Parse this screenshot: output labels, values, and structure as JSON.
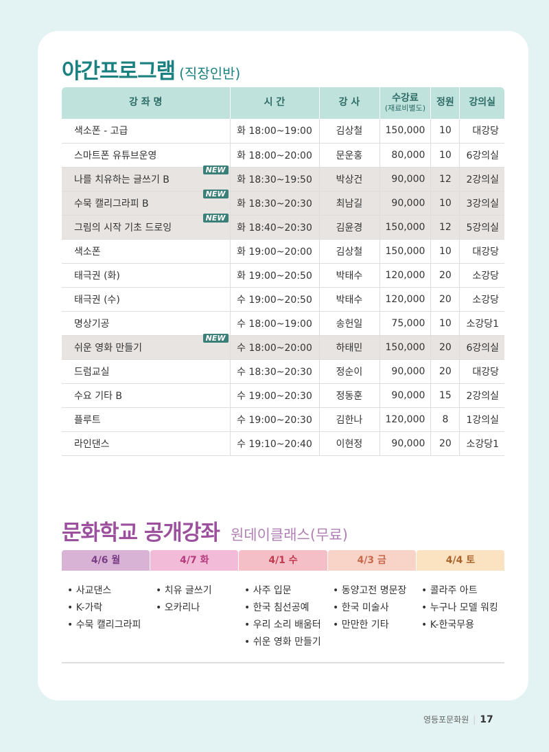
{
  "night": {
    "title": "야간프로그램",
    "subtitle": "(직장인반)",
    "headers": [
      "강 좌 명",
      "시 간",
      "강 사",
      "수강료",
      "(재료비별도)",
      "정원",
      "강의실"
    ],
    "badge": "NEW",
    "rows": [
      [
        "색소폰 - 고급",
        "화 18:00~19:00",
        "김상철",
        "150,000",
        "10",
        "대강당",
        false
      ],
      [
        "스마트폰 유튜브운영",
        "화 18:00~20:00",
        "문운홍",
        "80,000",
        "10",
        "6강의실",
        false
      ],
      [
        "나를 치유하는 글쓰기 B",
        "화 18:30~19:50",
        "박상건",
        "90,000",
        "12",
        "2강의실",
        true
      ],
      [
        "수묵 캘리그라피 B",
        "화 18:30~20:30",
        "최남길",
        "90,000",
        "10",
        "3강의실",
        true
      ],
      [
        "그림의 시작 기초 드로잉",
        "화 18:40~20:30",
        "김윤경",
        "150,000",
        "12",
        "5강의실",
        true
      ],
      [
        "색소폰",
        "화 19:00~20:00",
        "김상철",
        "150,000",
        "10",
        "대강당",
        false
      ],
      [
        "태극권 (화)",
        "화 19:00~20:50",
        "박태수",
        "120,000",
        "20",
        "소강당",
        false
      ],
      [
        "태극권 (수)",
        "수 19:00~20:50",
        "박태수",
        "120,000",
        "20",
        "소강당",
        false
      ],
      [
        "명상기공",
        "수 18:00~19:00",
        "송헌일",
        "75,000",
        "10",
        "소강당1",
        false
      ],
      [
        "쉬운 영화 만들기",
        "수 18:00~20:00",
        "하태민",
        "150,000",
        "20",
        "6강의실",
        true
      ],
      [
        "드럼교실",
        "수 18:30~20:30",
        "정순이",
        "90,000",
        "20",
        "대강당",
        false
      ],
      [
        "수요 기타 B",
        "수 19:00~20:30",
        "정동훈",
        "90,000",
        "15",
        "2강의실",
        false
      ],
      [
        "플루트",
        "수 19:00~20:30",
        "김한나",
        "120,000",
        "8",
        "1강의실",
        false
      ],
      [
        "라인댄스",
        "수 19:10~20:40",
        "이현정",
        "90,000",
        "20",
        "소강당1",
        false
      ]
    ]
  },
  "open": {
    "title": "문화학교 공개강좌",
    "subtitle": "원데이클래스(무료)",
    "days": [
      {
        "label": "4/6 월",
        "bg": "#d9b3d6",
        "color": "#7a3e86",
        "items": [
          "사교댄스",
          "K-가락",
          "수묵 캘리그라피"
        ]
      },
      {
        "label": "4/7 화",
        "bg": "#f2bcd8",
        "color": "#b43a7d",
        "items": [
          "치유 글쓰기",
          "오카리나"
        ]
      },
      {
        "label": "4/1 수",
        "bg": "#f5bfc8",
        "color": "#c0394e",
        "items": [
          "사주 입문",
          "한국 침선공예",
          "우리 소리 배움터",
          "쉬운 영화 만들기"
        ]
      },
      {
        "label": "4/3 금",
        "bg": "#f8d3c8",
        "color": "#c76a4c",
        "items": [
          "동양고전 명문장",
          "한국 미술사",
          "만만한 기타"
        ]
      },
      {
        "label": "4/4 토",
        "bg": "#fbe3c2",
        "color": "#a8642a",
        "items": [
          "콜라주 아트",
          "누구나 모델 워킹",
          "K-한국무용"
        ]
      }
    ]
  },
  "footer": {
    "org": "영등포문화원",
    "page": "17"
  }
}
